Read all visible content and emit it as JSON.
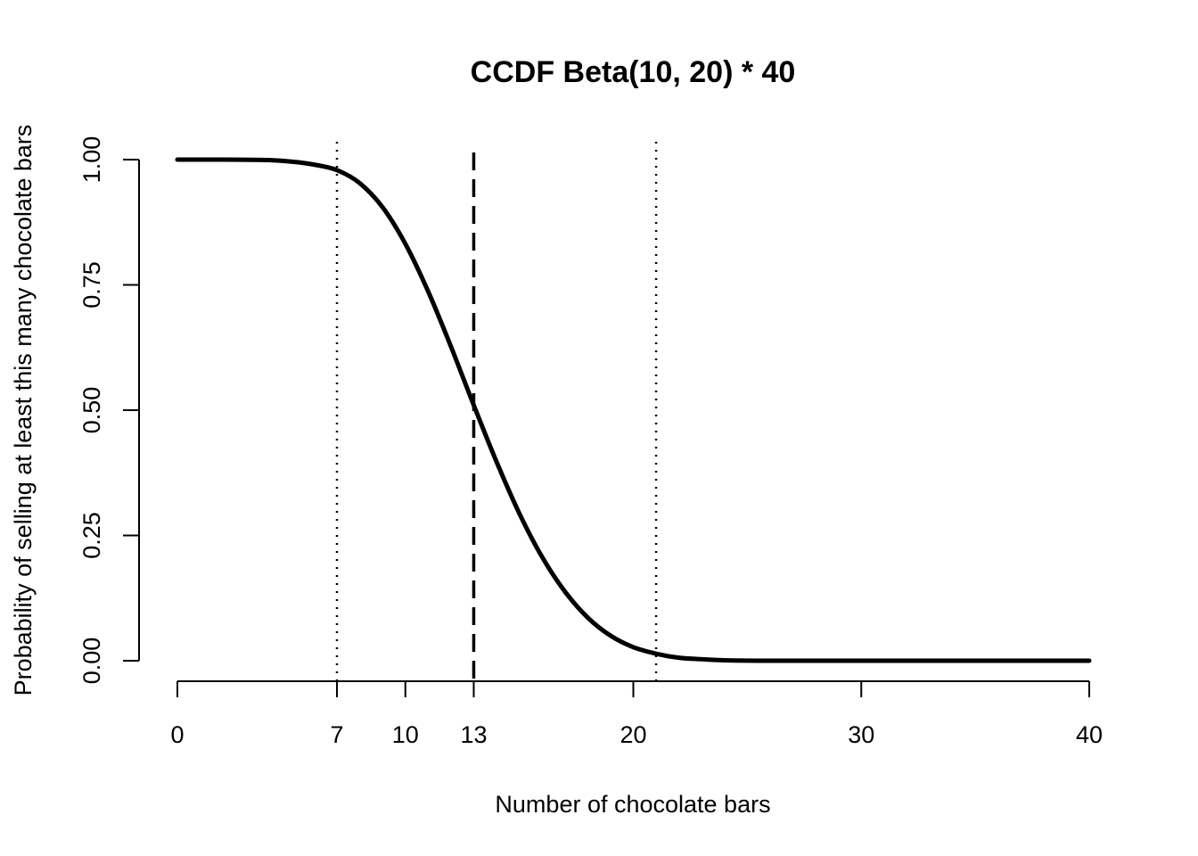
{
  "chart_data": {
    "type": "line",
    "title": "CCDF Beta(10, 20) * 40",
    "xlabel": "Number of chocolate bars",
    "ylabel": "Probability of selling at least this many chocolate bars",
    "xlim": [
      0,
      40
    ],
    "ylim": [
      0,
      1
    ],
    "x_ticks": [
      0,
      7,
      10,
      13,
      20,
      30,
      40
    ],
    "x_tick_labels": [
      "0",
      "7",
      "10",
      "13",
      "20",
      "30",
      "40"
    ],
    "y_ticks": [
      0,
      0.25,
      0.5,
      0.75,
      1
    ],
    "y_tick_labels": [
      "0.00",
      "0.25",
      "0.50",
      "0.75",
      "1.00"
    ],
    "grid": false,
    "series": [
      {
        "x": [
          0,
          2,
          4,
          5,
          6,
          7,
          8,
          9,
          10,
          11,
          12,
          13,
          14,
          15,
          16,
          17,
          18,
          19,
          20,
          21,
          22,
          23,
          24,
          26,
          30,
          35,
          40
        ],
        "y": [
          1.0,
          1.0,
          0.999,
          0.996,
          0.99,
          0.979,
          0.953,
          0.905,
          0.832,
          0.737,
          0.627,
          0.51,
          0.397,
          0.294,
          0.207,
          0.138,
          0.086,
          0.05,
          0.027,
          0.014,
          0.006,
          0.003,
          0.001,
          0.0,
          0.0,
          0.0,
          0.0
        ],
        "color": "#000000"
      }
    ],
    "reference_lines": [
      {
        "x": 7,
        "style": "dotted"
      },
      {
        "x": 13,
        "style": "dashed"
      },
      {
        "x": 21,
        "style": "dotted"
      }
    ]
  }
}
